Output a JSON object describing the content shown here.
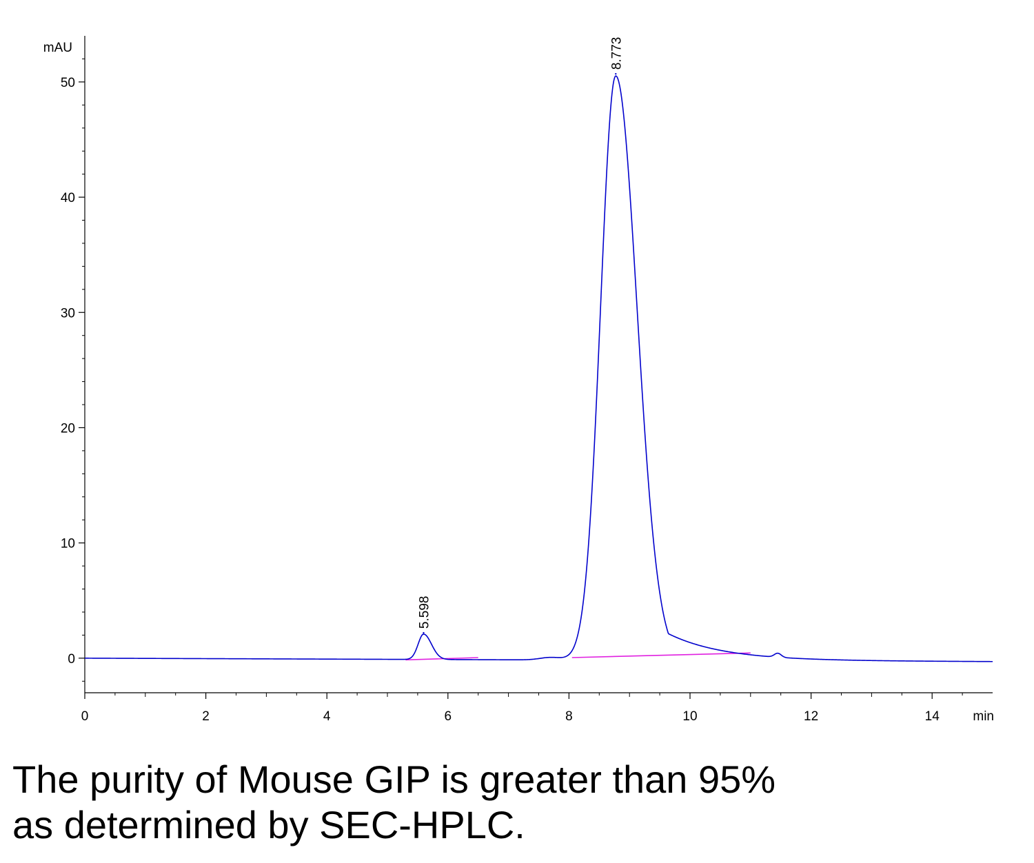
{
  "chart_data": {
    "type": "line",
    "title": "",
    "xlabel": "min",
    "ylabel": "mAU",
    "xlim": [
      0,
      15
    ],
    "ylim": [
      -3,
      54
    ],
    "x_ticks": [
      0,
      2,
      4,
      6,
      8,
      10,
      12,
      14
    ],
    "y_ticks": [
      0,
      10,
      20,
      30,
      40,
      50
    ],
    "grid": false,
    "colors": {
      "trace": "#0000cc",
      "baseline": "#e020e0",
      "axis": "#000000"
    },
    "peaks": [
      {
        "label": "5.598",
        "retention_time": 5.598,
        "height": 2.2,
        "sigma_left": 0.09,
        "sigma_right": 0.13
      },
      {
        "label": "8.773",
        "retention_time": 8.773,
        "height": 50.7,
        "sigma_left": 0.25,
        "sigma_right": 0.35
      }
    ],
    "series": [
      {
        "values": [
          [
            0.0,
            0.0
          ],
          [
            1.0,
            -0.05
          ],
          [
            2.0,
            -0.1
          ],
          [
            3.0,
            -0.15
          ],
          [
            4.0,
            -0.2
          ],
          [
            5.0,
            -0.25
          ],
          [
            5.2,
            -0.15
          ],
          [
            5.35,
            0.2
          ],
          [
            5.45,
            0.8
          ],
          [
            5.55,
            1.8
          ],
          [
            5.598,
            2.2
          ],
          [
            5.65,
            2.0
          ],
          [
            5.75,
            1.1
          ],
          [
            5.9,
            0.4
          ],
          [
            6.1,
            0.15
          ],
          [
            6.5,
            0.0
          ],
          [
            7.0,
            -0.1
          ],
          [
            7.4,
            0.0
          ],
          [
            7.7,
            0.2
          ],
          [
            8.0,
            0.15
          ],
          [
            8.2,
            0.8
          ],
          [
            8.35,
            4.0
          ],
          [
            8.5,
            20.0
          ],
          [
            8.6,
            36.0
          ],
          [
            8.7,
            48.0
          ],
          [
            8.773,
            50.7
          ],
          [
            8.85,
            49.0
          ],
          [
            8.95,
            43.0
          ],
          [
            9.1,
            28.0
          ],
          [
            9.3,
            14.5
          ],
          [
            9.5,
            7.5
          ],
          [
            9.8,
            3.6
          ],
          [
            10.1,
            1.8
          ],
          [
            10.5,
            0.9
          ],
          [
            11.0,
            0.45
          ],
          [
            11.3,
            0.35
          ],
          [
            11.45,
            0.55
          ],
          [
            11.6,
            0.2
          ],
          [
            12.0,
            0.05
          ],
          [
            13.0,
            -0.1
          ],
          [
            14.0,
            -0.15
          ],
          [
            15.0,
            -0.3
          ]
        ]
      }
    ],
    "baselines": [
      [
        [
          5.3,
          -0.15
        ],
        [
          6.5,
          0.05
        ]
      ],
      [
        [
          8.05,
          0.05
        ],
        [
          11.0,
          0.45
        ]
      ]
    ]
  },
  "caption": {
    "line1": "The purity of Mouse GIP is greater than 95%",
    "line2": "as determined by SEC-HPLC."
  }
}
